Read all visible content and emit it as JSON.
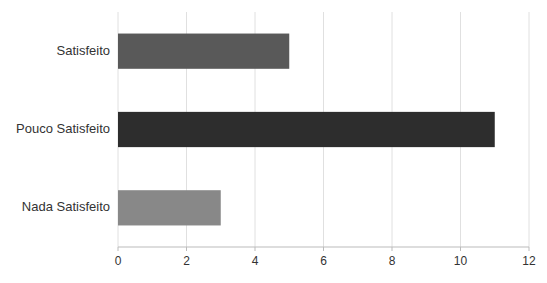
{
  "chart_data": {
    "type": "bar",
    "orientation": "horizontal",
    "categories": [
      "Satisfeito",
      "Pouco Satisfeito",
      "Nada Satisfeito"
    ],
    "values": [
      5,
      11,
      3
    ],
    "colors": [
      "#595959",
      "#2d2d2d",
      "#888888"
    ],
    "xlim": [
      0,
      12
    ],
    "xticks": [
      0,
      2,
      4,
      6,
      8,
      10,
      12
    ],
    "grid": true
  }
}
